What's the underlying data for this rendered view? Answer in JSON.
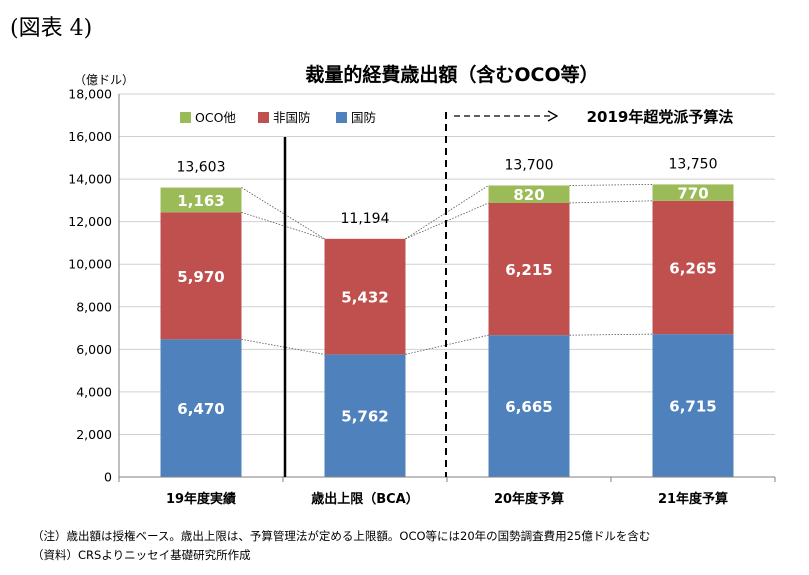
{
  "figure_label": "(図表 4)",
  "chart_data": {
    "type": "bar",
    "stacked": true,
    "title": "裁量的経費歳出額（含むOCO等）",
    "unit_label": "（億ドル）",
    "categories": [
      "19年度実績",
      "歳出上限（BCA）",
      "20年度予算",
      "21年度予算"
    ],
    "series": [
      {
        "name": "国防",
        "color": "#4f81bd",
        "values": [
          6470,
          5762,
          6665,
          6715
        ],
        "labels": [
          "6,470",
          "5,762",
          "6,665",
          "6,715"
        ]
      },
      {
        "name": "非国防",
        "color": "#c0504d",
        "values": [
          5970,
          5432,
          6215,
          6265
        ],
        "labels": [
          "5,970",
          "5,432",
          "6,215",
          "6,265"
        ]
      },
      {
        "name": "OCO他",
        "color": "#9bbb59",
        "values": [
          1163,
          0,
          820,
          770
        ],
        "labels": [
          "1,163",
          "",
          "820",
          "770"
        ]
      }
    ],
    "totals": [
      "13,603",
      "11,194",
      "13,700",
      "13,750"
    ],
    "total_values": [
      13603,
      11194,
      13700,
      13750
    ],
    "legend_order": [
      "OCO他",
      "非国防",
      "国防"
    ],
    "ylim": [
      0,
      18000
    ],
    "yticks": [
      "0",
      "2,000",
      "4,000",
      "6,000",
      "8,000",
      "10,000",
      "12,000",
      "14,000",
      "16,000",
      "18,000"
    ],
    "ytick_values": [
      0,
      2000,
      4000,
      6000,
      8000,
      10000,
      12000,
      14000,
      16000,
      18000
    ],
    "annotation": "2019年超党派予算法",
    "grid": true,
    "legend_position": "top-left"
  },
  "notes": [
    "（注）歳出額は授権ベース。歳出上限は、予算管理法が定める上限額。OCO等には20年の国勢調査費用25億ドルを含む",
    "（資料）CRSよりニッセイ基礎研究所作成"
  ]
}
